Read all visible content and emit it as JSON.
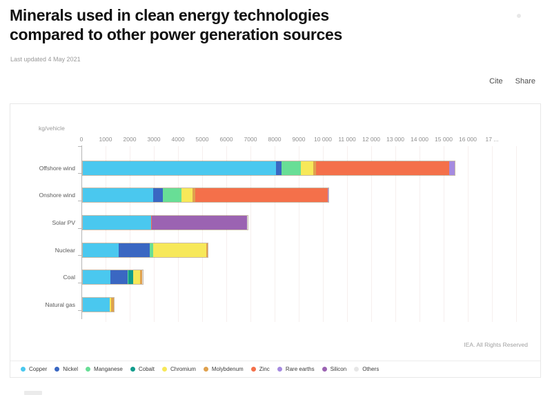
{
  "header": {
    "title_line1": "Minerals used in clean energy technologies",
    "title_line2": "compared to other power generation sources",
    "last_updated": "Last updated 4 May 2021",
    "actions": {
      "cite": "Cite",
      "share": "Share"
    }
  },
  "footer": {
    "source": "IEA. All Rights Reserved"
  },
  "chart_data": {
    "type": "bar",
    "orientation": "horizontal",
    "stacked": true,
    "unit_label": "kg/vehicle",
    "xlim": [
      0,
      18800
    ],
    "grid": true,
    "legend_position": "bottom",
    "x_tick_step": 1000,
    "x_tick_labels": [
      "0",
      "1000",
      "2000",
      "3000",
      "4000",
      "5000",
      "6000",
      "7000",
      "8000",
      "9000",
      "10 000",
      "11 000",
      "12 000",
      "13 000",
      "14 000",
      "15 000",
      "16 000",
      "17 ..."
    ],
    "categories": [
      "Offshore wind",
      "Onshore wind",
      "Solar PV",
      "Nuclear",
      "Coal",
      "Natural gas"
    ],
    "series": [
      {
        "name": "Copper",
        "color": "#4ac8ef",
        "values": [
          8000,
          2900,
          2822,
          1473,
          1150,
          1100
        ]
      },
      {
        "name": "Nickel",
        "color": "#3a67c2",
        "values": [
          240,
          404,
          1,
          1297,
          721,
          16
        ]
      },
      {
        "name": "Manganese",
        "color": "#68de96",
        "values": [
          790,
          780,
          0,
          148,
          5,
          0
        ]
      },
      {
        "name": "Cobalt",
        "color": "#129c8d",
        "values": [
          0,
          0,
          0,
          0,
          202,
          2
        ]
      },
      {
        "name": "Chromium",
        "color": "#f7e859",
        "values": [
          525,
          470,
          0,
          2190,
          307,
          48
        ]
      },
      {
        "name": "Molybdenum",
        "color": "#dfa14e",
        "values": [
          109,
          99,
          0,
          71,
          66,
          108
        ]
      },
      {
        "name": "Zinc",
        "color": "#f4704a",
        "values": [
          5500,
          5500,
          30,
          0,
          0,
          0
        ]
      },
      {
        "name": "Rare earths",
        "color": "#a58ae0",
        "values": [
          239,
          14,
          0,
          1,
          0,
          0
        ]
      },
      {
        "name": "Silicon",
        "color": "#9b63b2",
        "values": [
          0,
          0,
          3948,
          0,
          0,
          0
        ]
      },
      {
        "name": "Others",
        "color": "#e6e6e6",
        "values": [
          0,
          0,
          33,
          0,
          33,
          0
        ]
      }
    ]
  }
}
